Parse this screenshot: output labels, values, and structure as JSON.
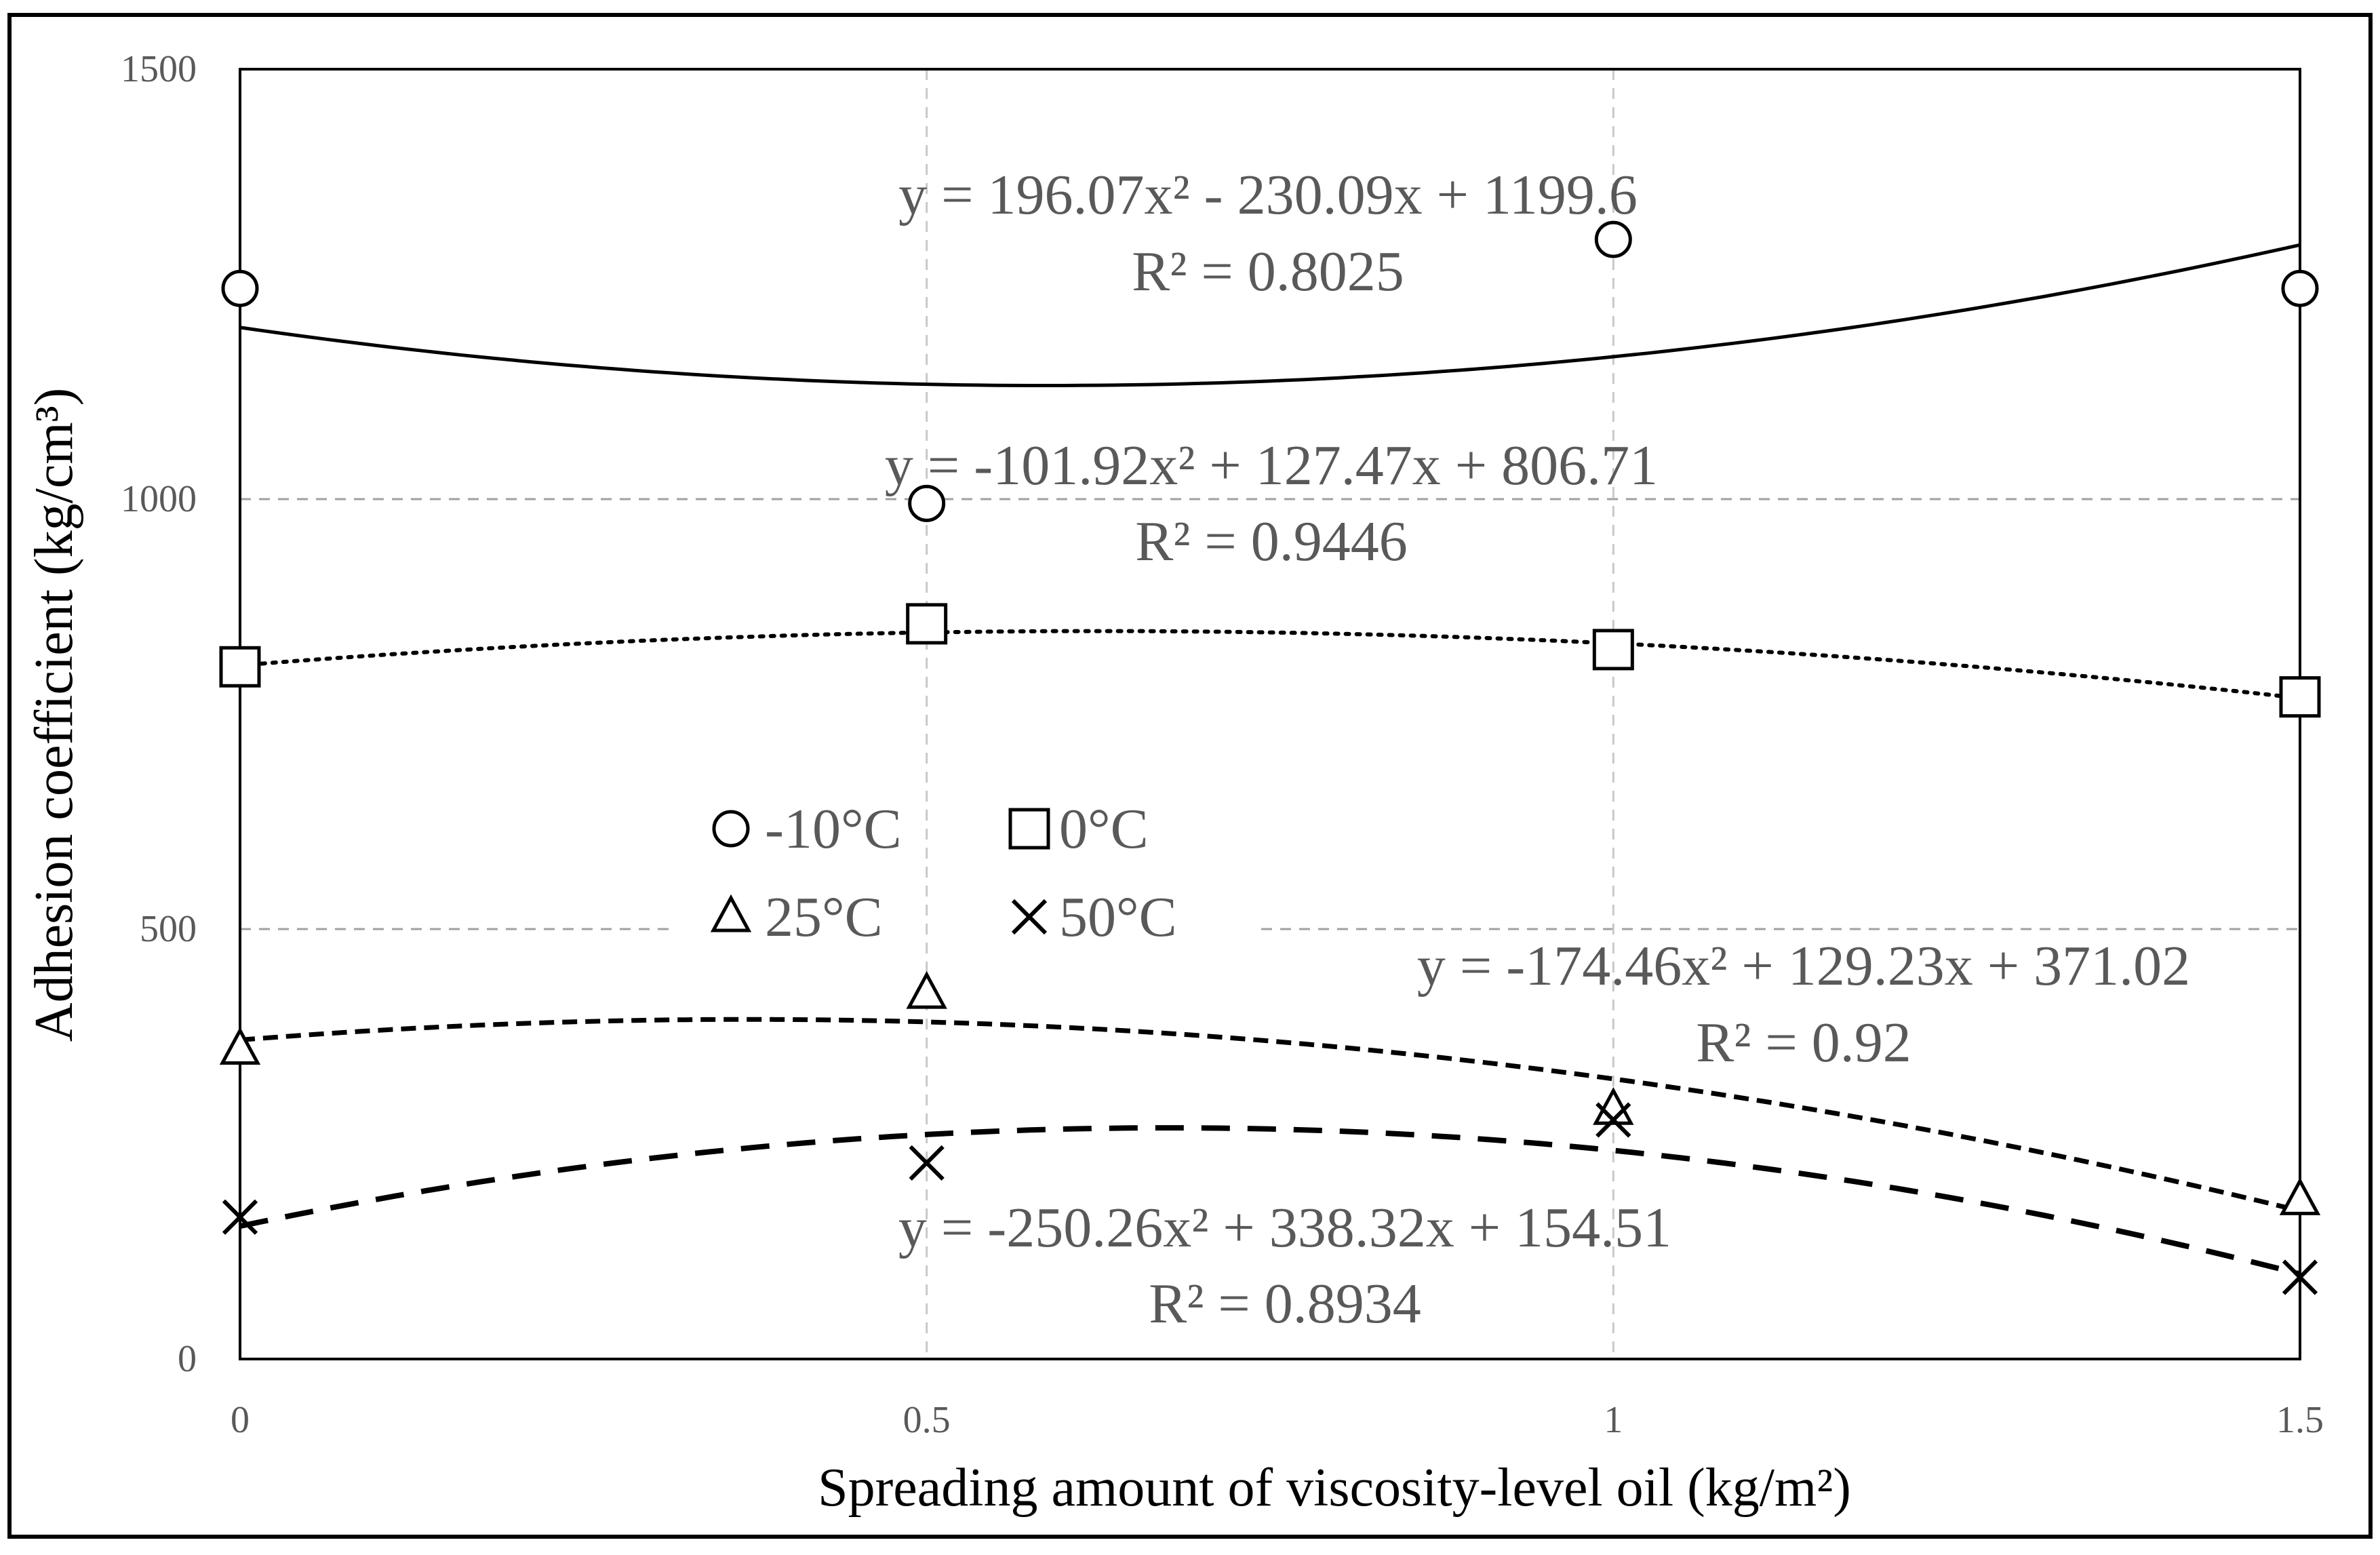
{
  "chart_data": {
    "type": "scatter",
    "title": "",
    "xlabel": "Spreading amount of viscosity-level  oil (kg/m²)",
    "ylabel": "Adhesion coefficient  (kg/cm³)",
    "xlim": [
      0,
      1.5
    ],
    "ylim": [
      0,
      1500
    ],
    "x_ticks": [
      0,
      0.5,
      1,
      1.5
    ],
    "x_tick_labels": [
      "0",
      "0.5",
      "1",
      "1.5"
    ],
    "y_ticks": [
      0,
      500,
      1000,
      1500
    ],
    "y_tick_labels": [
      "0",
      "500",
      "1000",
      "1500"
    ],
    "grid": "dashed",
    "legend_position": "center-left",
    "axis_color": "#000000",
    "grid_color": "#a0a0a0",
    "label_color": "#595959",
    "series": [
      {
        "name": "-10°C",
        "marker": "circle",
        "line_style": "solid",
        "x": [
          0,
          0.5,
          1,
          1.5
        ],
        "y": [
          1245,
          995,
          1302,
          1245
        ],
        "fit": {
          "a": 196.07,
          "b": -230.09,
          "c": 1199.6
        },
        "equation": "y = 196.07x² - 230.09x + 1199.6",
        "r2": "R² = 0.8025"
      },
      {
        "name": "0°C",
        "marker": "square",
        "line_style": "dotted",
        "x": [
          0,
          0.5,
          1,
          1.5
        ],
        "y": [
          805,
          855,
          825,
          770
        ],
        "fit": {
          "a": -101.92,
          "b": 127.47,
          "c": 806.71
        },
        "equation": "y = -101.92x² + 127.47x + 806.71",
        "r2": "R² = 0.9446"
      },
      {
        "name": "25°C",
        "marker": "triangle",
        "line_style": "short-dash",
        "x": [
          0,
          0.5,
          1,
          1.5
        ],
        "y": [
          360,
          425,
          290,
          185
        ],
        "fit": {
          "a": -174.46,
          "b": 129.23,
          "c": 371.02
        },
        "equation": "y = -174.46x² + 129.23x + 371.02",
        "r2": "R² = 0.92"
      },
      {
        "name": "50°C",
        "marker": "cross",
        "line_style": "long-dash",
        "x": [
          0,
          0.5,
          1,
          1.5
        ],
        "y": [
          165,
          228,
          278,
          95
        ],
        "fit": {
          "a": -250.26,
          "b": 338.32,
          "c": 154.51
        },
        "equation": "y = -250.26x² + 338.32x + 154.51",
        "r2": "R² = 0.8934"
      }
    ]
  }
}
